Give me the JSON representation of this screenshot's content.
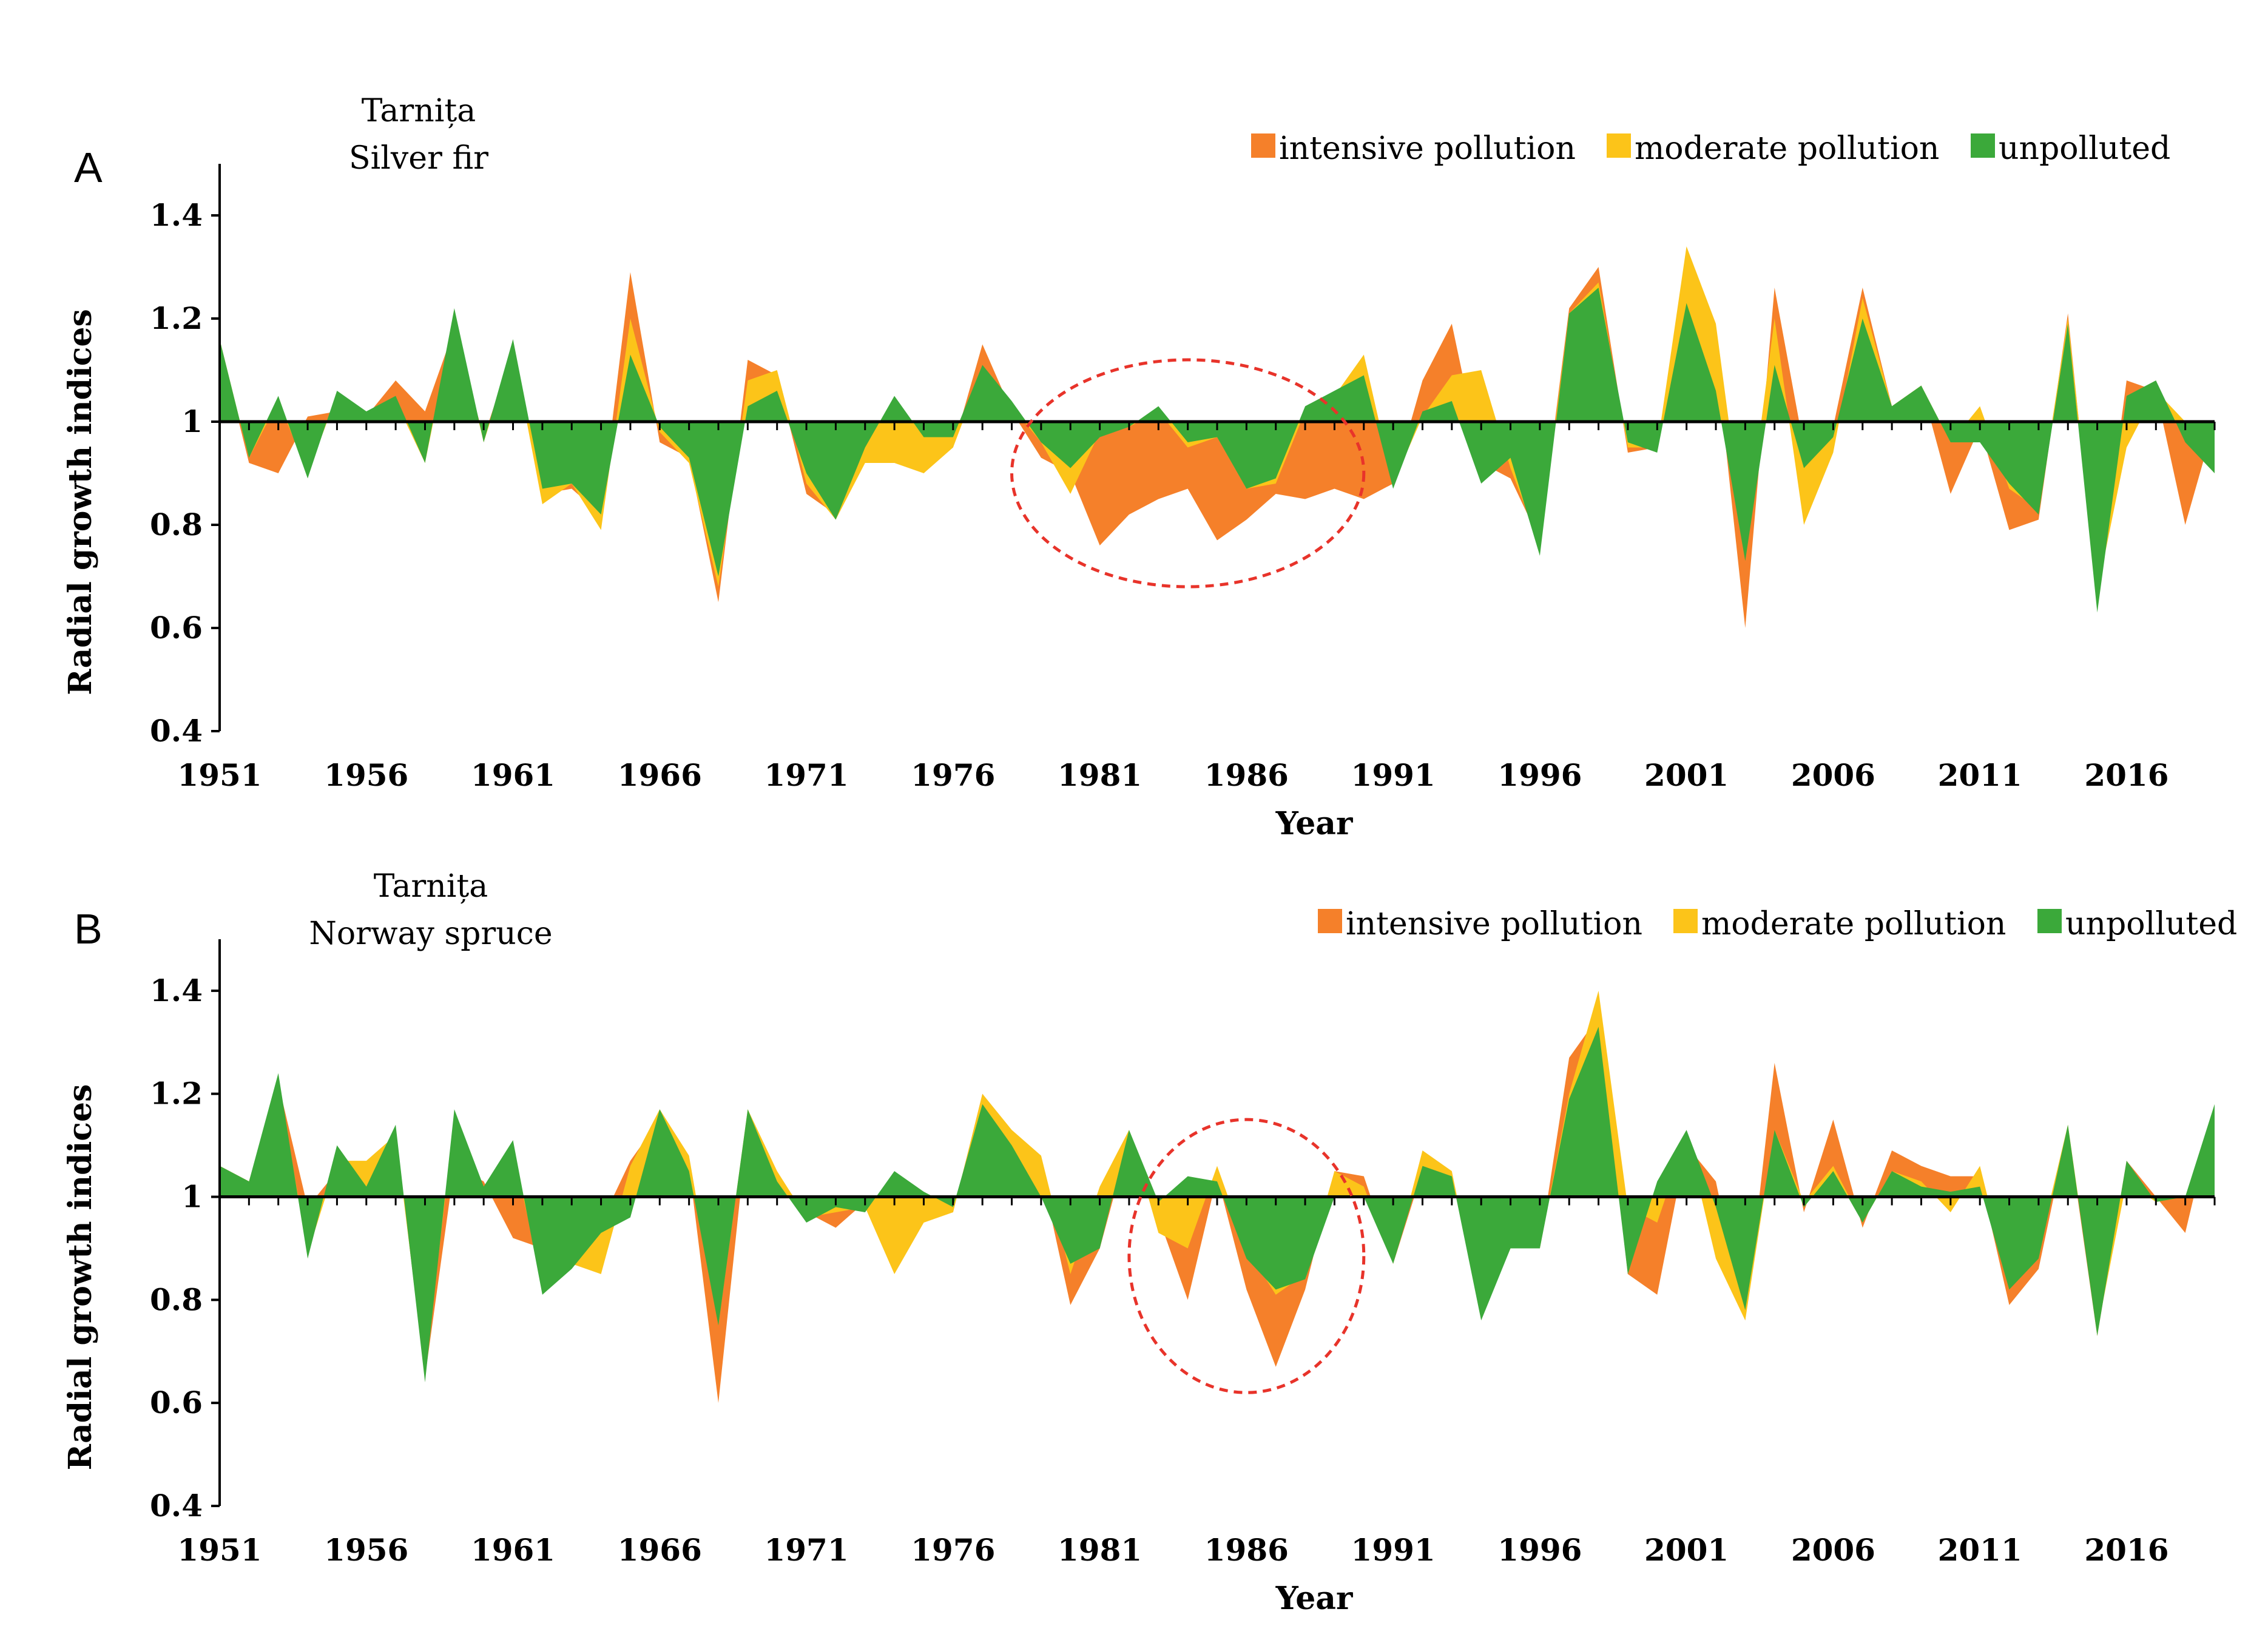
{
  "chart_data": [
    {
      "panel": "A",
      "type": "area",
      "title_lines": [
        "Tarnița",
        "Silver fir"
      ],
      "xlabel": "Year",
      "ylabel": "Radial growth indices",
      "xlim": [
        1951,
        2019
      ],
      "ylim": [
        0.4,
        1.5
      ],
      "yticks": [
        0.4,
        0.6,
        0.8,
        1,
        1.2,
        1.4
      ],
      "xticks": [
        1951,
        1956,
        1961,
        1966,
        1971,
        1976,
        1981,
        1986,
        1991,
        1996,
        2001,
        2006,
        2011,
        2016
      ],
      "baseline": 1,
      "legend": "top-right",
      "annotation": {
        "type": "ellipse",
        "x_range": [
          1978,
          1990
        ],
        "y_range": [
          0.68,
          1.12
        ],
        "color": "#e8332a"
      },
      "x": [
        1951,
        1952,
        1953,
        1954,
        1955,
        1956,
        1957,
        1958,
        1959,
        1960,
        1961,
        1962,
        1963,
        1964,
        1965,
        1966,
        1967,
        1968,
        1969,
        1970,
        1971,
        1972,
        1973,
        1974,
        1975,
        1976,
        1977,
        1978,
        1979,
        1980,
        1981,
        1982,
        1983,
        1984,
        1985,
        1986,
        1987,
        1988,
        1989,
        1990,
        1991,
        1992,
        1993,
        1994,
        1995,
        1996,
        1997,
        1998,
        1999,
        2000,
        2001,
        2002,
        2003,
        2004,
        2005,
        2006,
        2007,
        2008,
        2009,
        2010,
        2011,
        2012,
        2013,
        2014,
        2015,
        2016,
        2017,
        2018,
        2019
      ],
      "series": [
        {
          "name": "intensive pollution",
          "color": "#f5802a",
          "values": [
            1.15,
            0.92,
            0.9,
            1.01,
            1.02,
            1.01,
            1.08,
            1.02,
            1.18,
            0.97,
            1.14,
            0.86,
            0.87,
            0.82,
            1.29,
            0.96,
            0.93,
            0.65,
            1.12,
            1.09,
            0.86,
            0.82,
            0.93,
            0.92,
            0.93,
            0.95,
            1.15,
            1.02,
            0.93,
            0.9,
            0.76,
            0.82,
            0.85,
            0.87,
            0.77,
            0.81,
            0.86,
            0.85,
            0.87,
            0.85,
            0.88,
            1.08,
            1.19,
            0.92,
            0.89,
            0.77,
            1.22,
            1.3,
            0.94,
            0.95,
            1.2,
            1.13,
            0.6,
            1.26,
            0.95,
            0.99,
            1.26,
            1.03,
            1.07,
            0.86,
            0.99,
            0.79,
            0.81,
            1.21,
            0.65,
            1.08,
            1.06,
            0.8,
            1.0
          ]
        },
        {
          "name": "moderate pollution",
          "color": "#fcc419",
          "values": [
            1.16,
            0.93,
            1.04,
            0.9,
            1.05,
            1.0,
            1.04,
            0.92,
            1.2,
            0.96,
            1.14,
            0.84,
            0.88,
            0.79,
            1.2,
            0.98,
            0.92,
            0.68,
            1.08,
            1.1,
            0.88,
            0.81,
            0.92,
            0.92,
            0.9,
            0.95,
            1.1,
            1.03,
            0.96,
            0.86,
            0.98,
            0.99,
            1.02,
            0.95,
            0.97,
            0.87,
            0.88,
            1.02,
            1.05,
            1.13,
            0.88,
            1.01,
            1.09,
            1.1,
            0.91,
            0.76,
            1.21,
            1.27,
            0.95,
            0.95,
            1.34,
            1.19,
            0.76,
            1.2,
            0.8,
            0.94,
            1.24,
            1.03,
            1.07,
            0.96,
            1.03,
            0.87,
            0.83,
            1.2,
            0.67,
            0.95,
            1.06,
            1.0,
            0.9
          ]
        },
        {
          "name": "unpolluted",
          "color": "#3ba93a",
          "values": [
            1.16,
            0.93,
            1.05,
            0.89,
            1.06,
            1.02,
            1.05,
            0.92,
            1.22,
            0.96,
            1.16,
            0.87,
            0.88,
            0.82,
            1.13,
            0.99,
            0.93,
            0.7,
            1.03,
            1.06,
            0.9,
            0.81,
            0.95,
            1.05,
            0.97,
            0.97,
            1.11,
            1.04,
            0.96,
            0.91,
            0.97,
            0.99,
            1.03,
            0.96,
            0.97,
            0.87,
            0.89,
            1.03,
            1.06,
            1.09,
            0.87,
            1.02,
            1.04,
            0.88,
            0.93,
            0.74,
            1.21,
            1.26,
            0.96,
            0.94,
            1.23,
            1.06,
            0.73,
            1.11,
            0.91,
            0.97,
            1.2,
            1.03,
            1.07,
            0.96,
            0.96,
            0.88,
            0.82,
            1.19,
            0.63,
            1.05,
            1.08,
            0.96,
            0.9
          ]
        }
      ]
    },
    {
      "panel": "B",
      "type": "area",
      "title_lines": [
        "Tarnița",
        "Norway spruce"
      ],
      "xlabel": "Year",
      "ylabel": "Radial growth indices",
      "xlim": [
        1951,
        2019
      ],
      "ylim": [
        0.4,
        1.5
      ],
      "yticks": [
        0.4,
        0.6,
        0.8,
        1,
        1.2,
        1.4
      ],
      "xticks": [
        1951,
        1956,
        1961,
        1966,
        1971,
        1976,
        1981,
        1986,
        1991,
        1996,
        2001,
        2006,
        2011,
        2016
      ],
      "baseline": 1,
      "legend": "top-right",
      "annotation": {
        "type": "ellipse",
        "x_range": [
          1982,
          1990
        ],
        "y_range": [
          0.62,
          1.15
        ],
        "color": "#e8332a"
      },
      "x": [
        1951,
        1952,
        1953,
        1954,
        1955,
        1956,
        1957,
        1958,
        1959,
        1960,
        1961,
        1962,
        1963,
        1964,
        1965,
        1966,
        1967,
        1968,
        1969,
        1970,
        1971,
        1972,
        1973,
        1974,
        1975,
        1976,
        1977,
        1978,
        1979,
        1980,
        1981,
        1982,
        1983,
        1984,
        1985,
        1986,
        1987,
        1988,
        1989,
        1990,
        1991,
        1992,
        1993,
        1994,
        1995,
        1996,
        1997,
        1998,
        1999,
        2000,
        2001,
        2002,
        2003,
        2004,
        2005,
        2006,
        2007,
        2008,
        2009,
        2010,
        2011,
        2012,
        2013,
        2014,
        2015,
        2016,
        2017,
        2018,
        2019
      ],
      "series": [
        {
          "name": "intensive pollution",
          "color": "#f5802a",
          "values": [
            1.06,
            1.03,
            1.22,
            0.98,
            1.05,
            1.02,
            1.13,
            0.65,
            1.06,
            1.03,
            0.92,
            0.9,
            0.92,
            0.95,
            1.07,
            1.15,
            1.06,
            0.6,
            1.14,
            1.04,
            0.97,
            0.94,
            0.99,
            0.98,
            1.0,
            0.97,
            1.2,
            1.12,
            1.05,
            0.79,
            0.9,
            1.11,
            0.96,
            0.8,
            1.04,
            0.82,
            0.67,
            0.82,
            1.05,
            1.04,
            0.87,
            1.05,
            1.04,
            0.77,
            0.9,
            0.9,
            1.27,
            1.35,
            0.85,
            0.81,
            1.1,
            1.03,
            0.76,
            1.26,
            0.97,
            1.15,
            0.94,
            1.09,
            1.06,
            1.04,
            1.04,
            0.79,
            0.86,
            1.13,
            0.73,
            1.07,
            1.0,
            0.93,
            1.17
          ]
        },
        {
          "name": "moderate pollution",
          "color": "#fcc419",
          "values": [
            1.06,
            1.03,
            1.23,
            0.89,
            1.07,
            1.07,
            1.12,
            0.66,
            1.15,
            1.01,
            1.09,
            0.83,
            0.87,
            0.85,
            1.06,
            1.17,
            1.08,
            0.75,
            1.17,
            1.05,
            0.96,
            0.97,
            0.98,
            0.85,
            0.95,
            0.97,
            1.2,
            1.13,
            1.08,
            0.85,
            1.02,
            1.13,
            0.93,
            0.9,
            1.06,
            0.9,
            0.81,
            0.85,
            1.05,
            1.02,
            0.87,
            1.09,
            1.05,
            0.77,
            0.9,
            0.9,
            1.2,
            1.4,
            0.98,
            0.95,
            1.12,
            0.88,
            0.76,
            1.13,
            0.99,
            1.06,
            0.95,
            1.05,
            1.03,
            0.97,
            1.06,
            0.83,
            0.9,
            1.14,
            0.74,
            1.03,
            0.99,
            1.0,
            1.17
          ]
        },
        {
          "name": "unpolluted",
          "color": "#3ba93a",
          "values": [
            1.06,
            1.03,
            1.24,
            0.88,
            1.1,
            1.02,
            1.14,
            0.64,
            1.17,
            1.02,
            1.11,
            0.81,
            0.86,
            0.93,
            0.96,
            1.17,
            1.05,
            0.75,
            1.17,
            1.03,
            0.95,
            0.98,
            0.97,
            1.05,
            1.01,
            0.98,
            1.18,
            1.1,
            1.0,
            0.87,
            0.9,
            1.13,
            0.99,
            1.04,
            1.03,
            0.88,
            0.82,
            0.84,
            1.0,
            1.0,
            0.87,
            1.06,
            1.04,
            0.76,
            0.9,
            0.9,
            1.19,
            1.33,
            0.85,
            1.03,
            1.13,
            0.98,
            0.78,
            1.13,
            0.98,
            1.05,
            0.95,
            1.05,
            1.02,
            1.01,
            1.02,
            0.82,
            0.88,
            1.14,
            0.73,
            1.07,
            0.99,
            1.0,
            1.18
          ]
        }
      ]
    }
  ]
}
